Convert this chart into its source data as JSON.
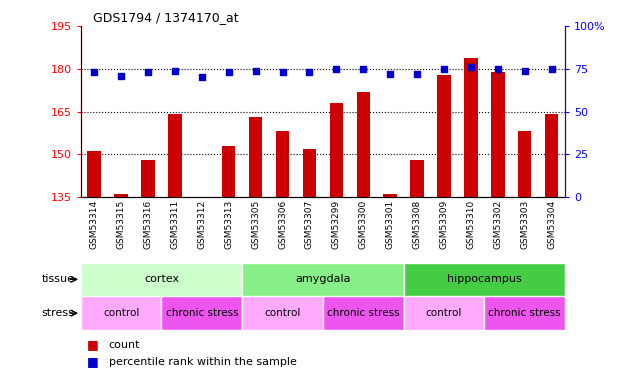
{
  "title": "GDS1794 / 1374170_at",
  "samples": [
    "GSM53314",
    "GSM53315",
    "GSM53316",
    "GSM53311",
    "GSM53312",
    "GSM53313",
    "GSM53305",
    "GSM53306",
    "GSM53307",
    "GSM53299",
    "GSM53300",
    "GSM53301",
    "GSM53308",
    "GSM53309",
    "GSM53310",
    "GSM53302",
    "GSM53303",
    "GSM53304"
  ],
  "counts": [
    151,
    136,
    148,
    164,
    135,
    153,
    163,
    158,
    152,
    168,
    172,
    136,
    148,
    178,
    184,
    179,
    158,
    164
  ],
  "percentiles": [
    73,
    71,
    73,
    74,
    70,
    73,
    74,
    73,
    73,
    75,
    75,
    72,
    72,
    75,
    76,
    75,
    74,
    75
  ],
  "ylim_left": [
    135,
    195
  ],
  "ylim_right": [
    0,
    100
  ],
  "yticks_left": [
    135,
    150,
    165,
    180,
    195
  ],
  "yticks_right": [
    0,
    25,
    50,
    75,
    100
  ],
  "hlines": [
    150,
    165,
    180
  ],
  "tissue_groups": [
    {
      "label": "cortex",
      "start": 0,
      "end": 6,
      "color": "#ccffcc"
    },
    {
      "label": "amygdala",
      "start": 6,
      "end": 12,
      "color": "#88ee88"
    },
    {
      "label": "hippocampus",
      "start": 12,
      "end": 18,
      "color": "#44cc44"
    }
  ],
  "stress_groups": [
    {
      "label": "control",
      "start": 0,
      "end": 3,
      "color": "#ffaaff"
    },
    {
      "label": "chronic stress",
      "start": 3,
      "end": 6,
      "color": "#ee55ee"
    },
    {
      "label": "control",
      "start": 6,
      "end": 9,
      "color": "#ffaaff"
    },
    {
      "label": "chronic stress",
      "start": 9,
      "end": 12,
      "color": "#ee55ee"
    },
    {
      "label": "control",
      "start": 12,
      "end": 15,
      "color": "#ffaaff"
    },
    {
      "label": "chronic stress",
      "start": 15,
      "end": 18,
      "color": "#ee55ee"
    }
  ],
  "bar_color": "#cc0000",
  "dot_color": "#0000cc",
  "xtick_bg": "#cccccc",
  "tissue_label": "tissue",
  "stress_label": "stress",
  "legend_count": "count",
  "legend_percentile": "percentile rank within the sample",
  "bar_width": 0.5
}
